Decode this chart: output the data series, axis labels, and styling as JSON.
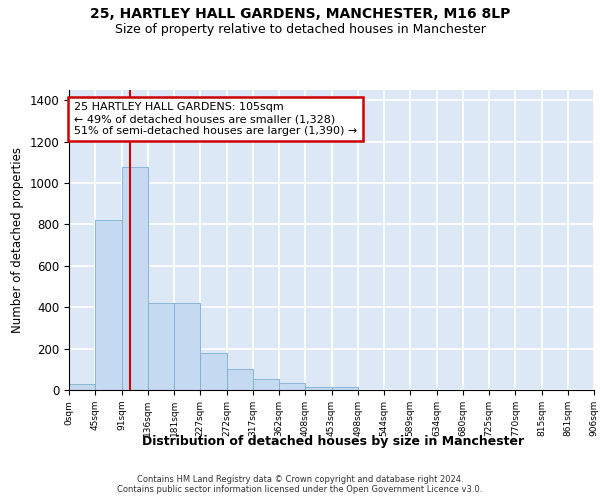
{
  "title": "25, HARTLEY HALL GARDENS, MANCHESTER, M16 8LP",
  "subtitle": "Size of property relative to detached houses in Manchester",
  "xlabel": "Distribution of detached houses by size in Manchester",
  "ylabel": "Number of detached properties",
  "bar_values": [
    28,
    820,
    1080,
    420,
    420,
    180,
    100,
    55,
    32,
    15,
    15,
    0,
    0,
    0,
    0,
    0,
    0,
    0,
    0,
    0
  ],
  "bar_color": "#c5d9f0",
  "bar_edge_color": "#7bafd4",
  "tick_labels": [
    "0sqm",
    "45sqm",
    "91sqm",
    "136sqm",
    "181sqm",
    "227sqm",
    "272sqm",
    "317sqm",
    "362sqm",
    "408sqm",
    "453sqm",
    "498sqm",
    "544sqm",
    "589sqm",
    "634sqm",
    "680sqm",
    "725sqm",
    "770sqm",
    "815sqm",
    "861sqm",
    "906sqm"
  ],
  "ylim": [
    0,
    1450
  ],
  "yticks": [
    0,
    200,
    400,
    600,
    800,
    1000,
    1200,
    1400
  ],
  "vline_x": 2.32,
  "vline_color": "#cc0000",
  "annotation_line1": "25 HARTLEY HALL GARDENS: 105sqm",
  "annotation_line2": "← 49% of detached houses are smaller (1,328)",
  "annotation_line3": "51% of semi-detached houses are larger (1,390) →",
  "footer_text": "Contains HM Land Registry data © Crown copyright and database right 2024.\nContains public sector information licensed under the Open Government Licence v3.0.",
  "background_color": "#dce8f5",
  "grid_color": "#ffffff",
  "fig_bg_color": "#ffffff"
}
